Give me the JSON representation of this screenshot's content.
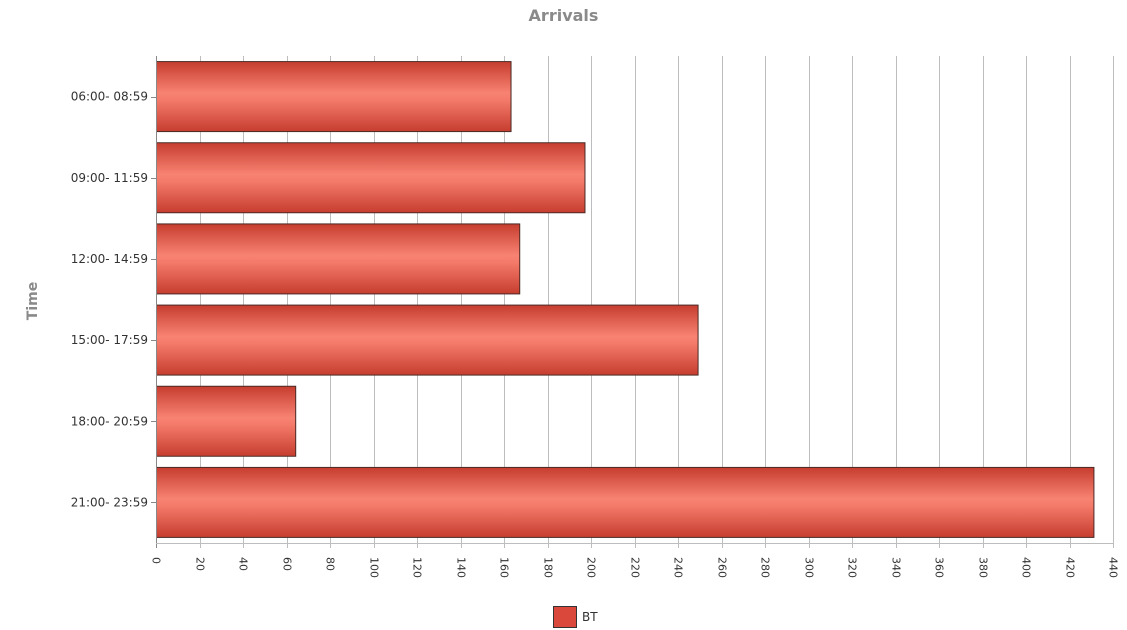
{
  "chart_data": {
    "type": "bar",
    "orientation": "horizontal",
    "title": "Arrivals",
    "ylabel": "Time",
    "xlabel": "",
    "categories": [
      "06:00- 08:59",
      "09:00- 11:59",
      "12:00- 14:59",
      "15:00- 17:59",
      "18:00- 20:59",
      "21:00- 23:59"
    ],
    "series": [
      {
        "name": "BT",
        "values": [
          163,
          197,
          167,
          249,
          64,
          431
        ]
      }
    ],
    "xlim": [
      0,
      440
    ],
    "xticks": [
      0,
      20,
      40,
      60,
      80,
      100,
      120,
      140,
      160,
      180,
      200,
      220,
      240,
      260,
      280,
      300,
      320,
      340,
      360,
      380,
      400,
      420,
      440
    ],
    "grid": "vertical",
    "legend_position": "bottom",
    "bar_color": "#d9483a"
  }
}
